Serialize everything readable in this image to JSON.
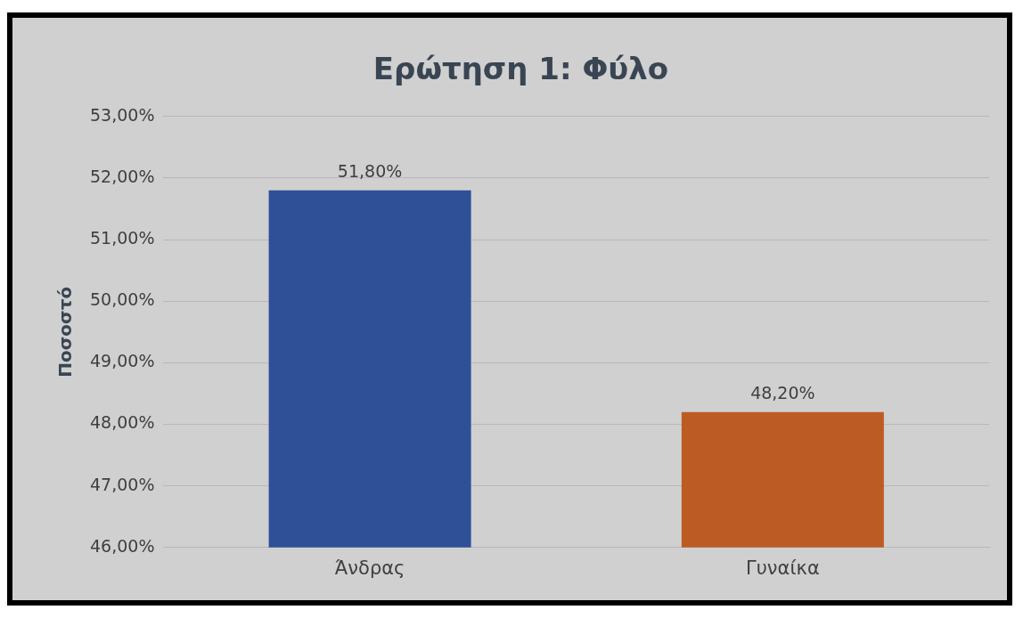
{
  "chart_data": {
    "type": "bar",
    "title": "Ερώτηση 1: Φύλο",
    "ylabel": "Ποσοστό",
    "categories": [
      "Άνδρας",
      "Γυναίκα"
    ],
    "values": [
      51.8,
      48.2
    ],
    "colors": [
      "#2f5097",
      "#bd5b24"
    ],
    "value_labels": [
      "51,80%",
      "48,20%"
    ],
    "ylim": [
      46,
      53
    ],
    "yticks": [
      {
        "value": 46,
        "label": "46,00%"
      },
      {
        "value": 47,
        "label": "47,00%"
      },
      {
        "value": 48,
        "label": "48,00%"
      },
      {
        "value": 49,
        "label": "49,00%"
      },
      {
        "value": 50,
        "label": "50,00%"
      },
      {
        "value": 51,
        "label": "51,00%"
      },
      {
        "value": 52,
        "label": "52,00%"
      },
      {
        "value": 53,
        "label": "53,00%"
      }
    ],
    "grid": "y"
  }
}
